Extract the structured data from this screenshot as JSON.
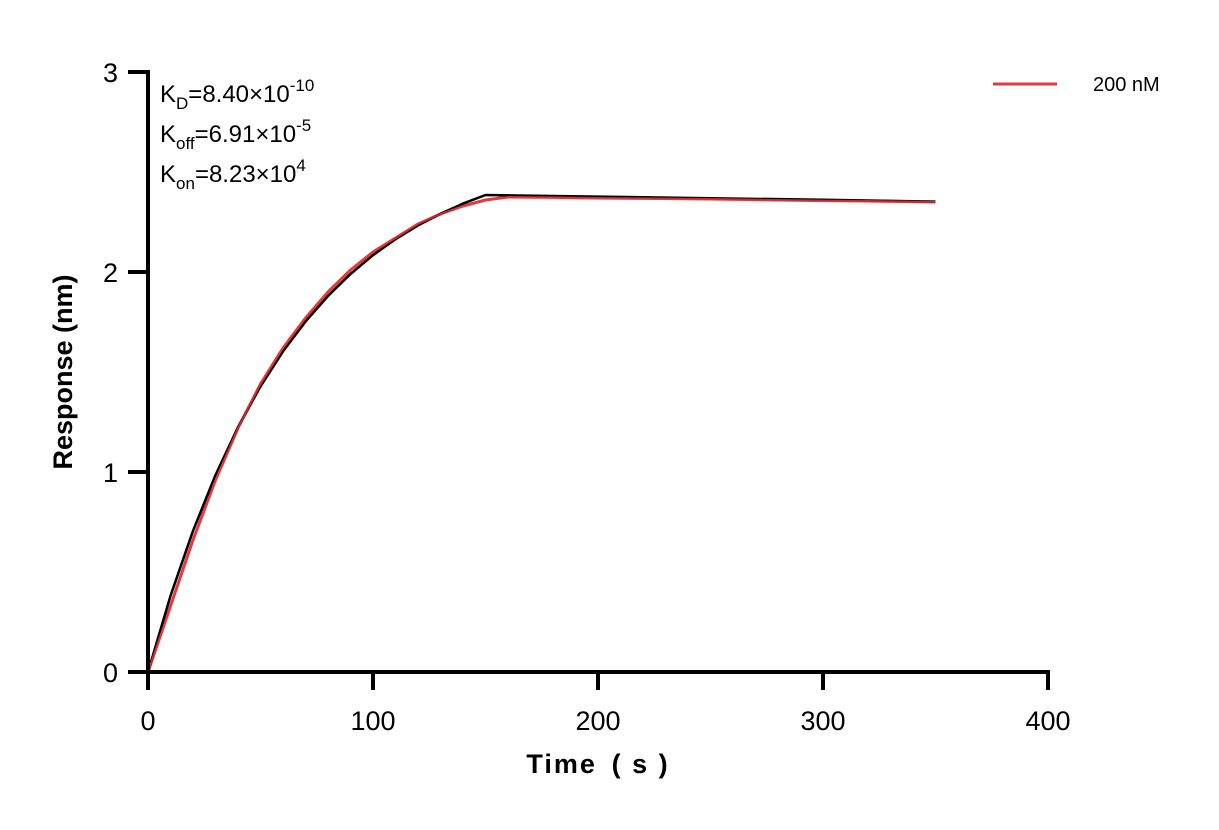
{
  "chart_data": {
    "type": "line",
    "xlabel": "Time  ( s )",
    "ylabel": "Response (nm)",
    "xlim": [
      0,
      400
    ],
    "ylim": [
      0,
      3
    ],
    "xticks": [
      "0",
      "100",
      "200",
      "300",
      "400"
    ],
    "yticks": [
      "0",
      "1",
      "2",
      "3"
    ],
    "grid": false,
    "legend_position": "top-right",
    "annotations": [
      {
        "main": "K",
        "sub": "D",
        "rest": "=8.40×10",
        "sup": "-10"
      },
      {
        "main": "K",
        "sub": "off",
        "rest": "=6.91×10",
        "sup": "-5"
      },
      {
        "main": "K",
        "sub": "on",
        "rest": "=8.23×10",
        "sup": "4"
      }
    ],
    "series": [
      {
        "name": "200 nM",
        "color": "#e8383d",
        "x": [
          0,
          10,
          20,
          30,
          40,
          50,
          60,
          70,
          80,
          90,
          100,
          110,
          120,
          130,
          140,
          150,
          160,
          180,
          200,
          220,
          250,
          280,
          300,
          320,
          350
        ],
        "y": [
          0,
          0.33,
          0.66,
          0.96,
          1.22,
          1.44,
          1.62,
          1.77,
          1.9,
          2.01,
          2.1,
          2.17,
          2.24,
          2.29,
          2.33,
          2.36,
          2.375,
          2.373,
          2.37,
          2.368,
          2.365,
          2.36,
          2.357,
          2.355,
          2.35
        ]
      },
      {
        "role": "fit",
        "color": "#000000",
        "x": [
          0,
          10,
          20,
          30,
          40,
          50,
          60,
          70,
          80,
          90,
          100,
          110,
          120,
          130,
          140,
          150,
          200,
          250,
          300,
          350
        ],
        "y": [
          0,
          0.381,
          0.706,
          0.985,
          1.224,
          1.428,
          1.603,
          1.752,
          1.88,
          1.99,
          2.084,
          2.164,
          2.233,
          2.291,
          2.342,
          2.385,
          2.377,
          2.369,
          2.361,
          2.352
        ]
      }
    ]
  }
}
